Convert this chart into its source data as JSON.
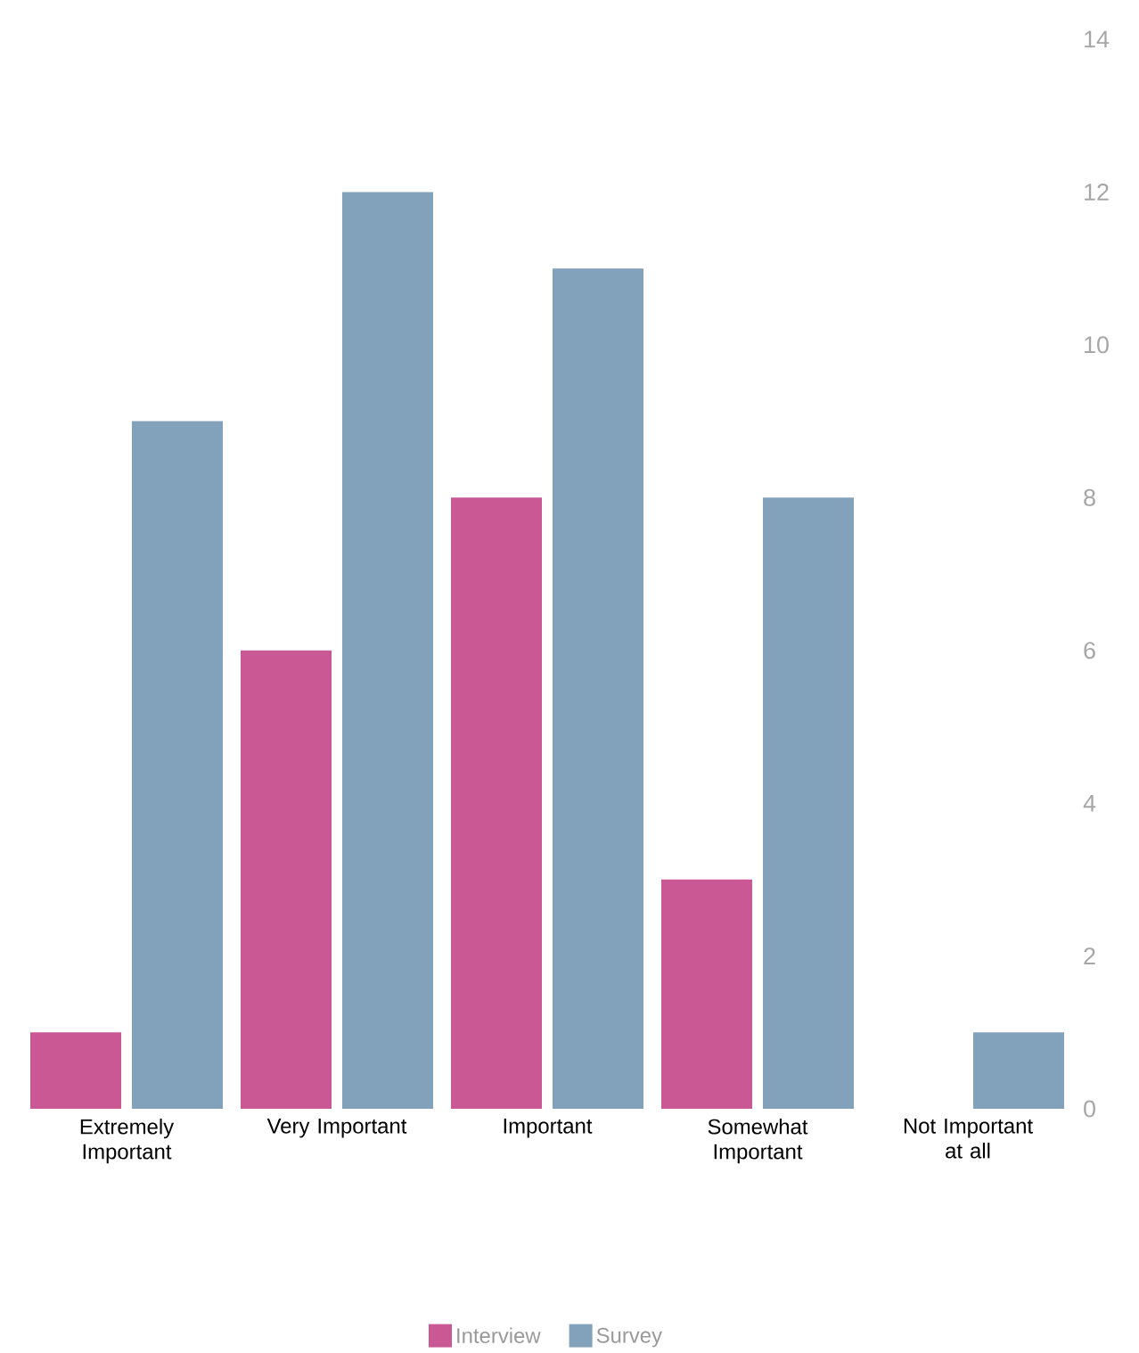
{
  "chart_data": {
    "type": "bar",
    "categories": [
      "Extremely Important",
      "Very Important",
      "Important",
      "Somewhat Important",
      "Not Important at all"
    ],
    "series": [
      {
        "name": "Interview",
        "color": "#c95895",
        "values": [
          1,
          6,
          8,
          3,
          0
        ]
      },
      {
        "name": "Survey",
        "color": "#82a2bb",
        "values": [
          9,
          12,
          11,
          8,
          1
        ]
      }
    ],
    "ylim": [
      0,
      14
    ],
    "yticks": [
      0,
      2,
      4,
      6,
      8,
      10,
      12,
      14
    ],
    "legend": "bottom"
  }
}
